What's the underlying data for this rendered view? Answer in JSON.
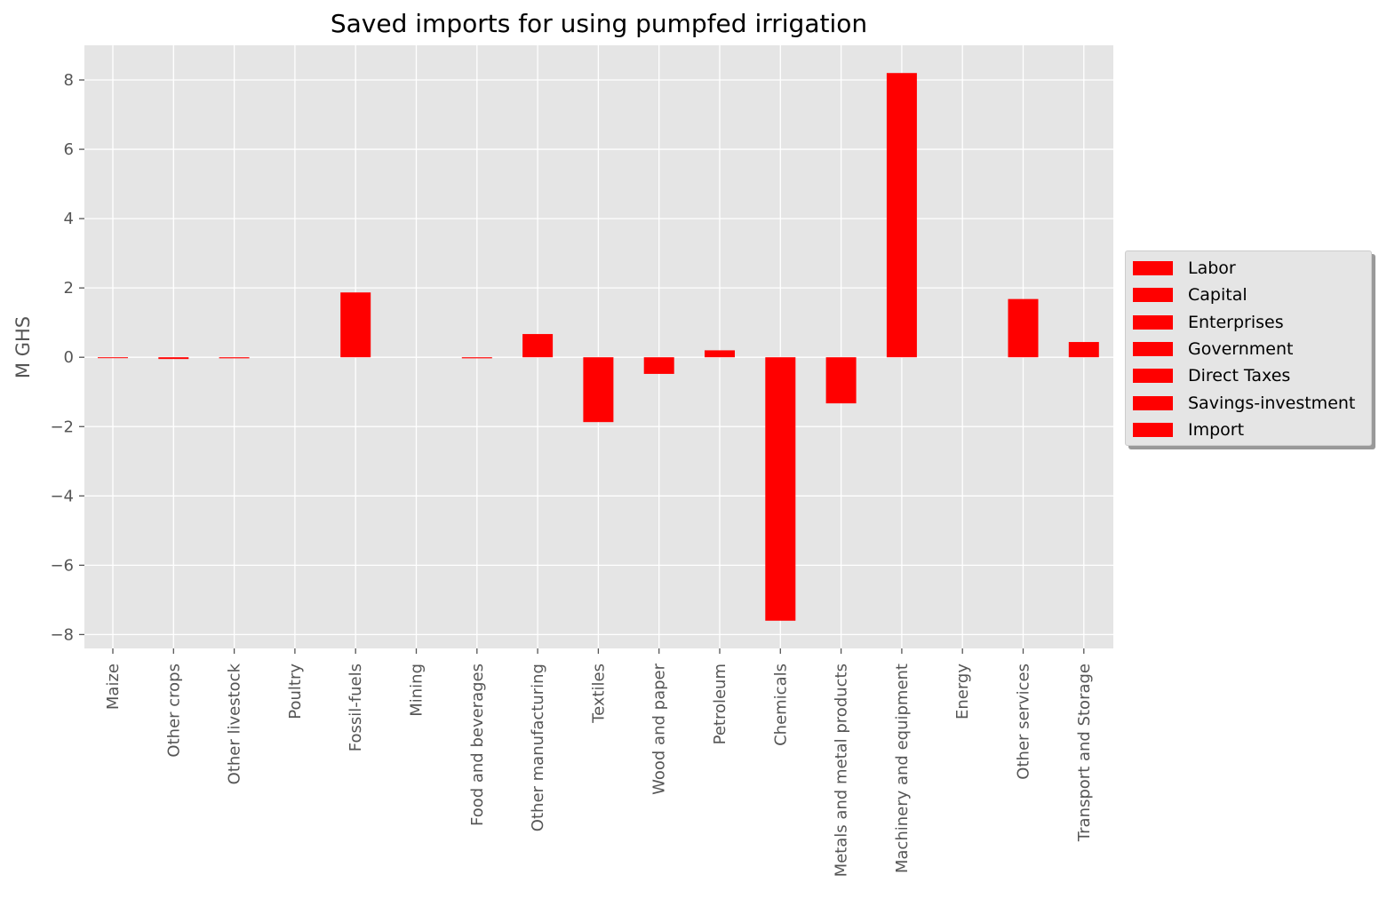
{
  "chart_data": {
    "type": "bar",
    "title": "Saved imports for using pumpfed irrigation",
    "xlabel": "",
    "ylabel": "M GHS",
    "ylim": [
      -8.4,
      9.0
    ],
    "yticks": [
      -8,
      -6,
      -4,
      -2,
      0,
      2,
      4,
      6,
      8
    ],
    "ytick_labels": [
      "−8",
      "−6",
      "−4",
      "−2",
      "0",
      "2",
      "4",
      "6",
      "8"
    ],
    "grid": true,
    "legend_position": "center-right outside",
    "bar_color": "#ff0000",
    "categories": [
      "Maize",
      "Other crops",
      "Other livestock",
      "Poultry",
      "Fossil-fuels",
      "Mining",
      "Food and beverages",
      "Other manufacturing",
      "Textiles",
      "Wood and paper",
      "Petroleum",
      "Chemicals",
      "Metals and metal products",
      "Machinery and equipment",
      "Energy",
      "Other services",
      "Transport and Storage"
    ],
    "values": [
      -0.02,
      -0.05,
      -0.03,
      0.0,
      1.87,
      0.0,
      -0.03,
      0.67,
      -1.87,
      -0.48,
      0.2,
      -7.6,
      -1.33,
      8.2,
      0.0,
      1.68,
      0.44
    ],
    "legend": [
      "Labor",
      "Capital",
      "Enterprises",
      "Government",
      "Direct Taxes",
      "Savings-investment",
      "Import"
    ]
  }
}
